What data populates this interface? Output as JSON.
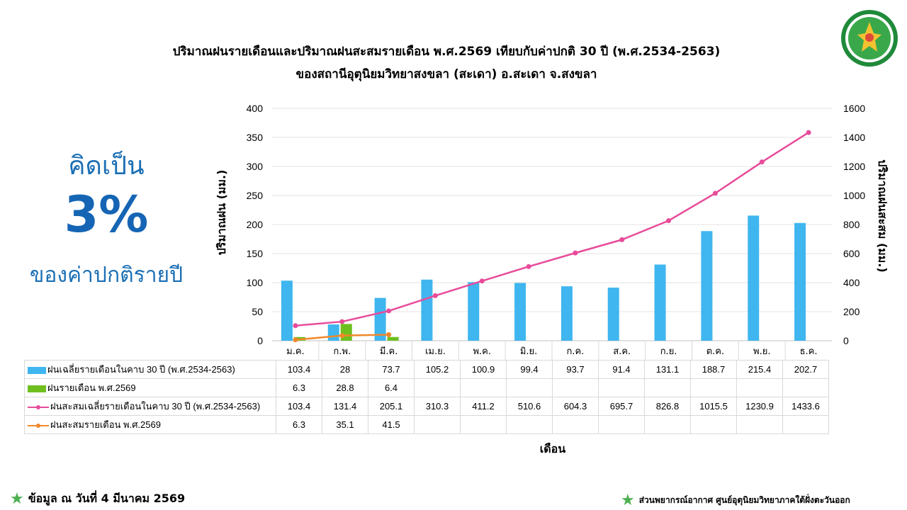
{
  "title_line1": "ปริมาณฝนรายเดือนและปริมาณฝนสะสมรายเดือน  พ.ศ.2569 เทียบกับค่าปกติ 30 ปี (พ.ศ.2534-2563)",
  "title_line2": "ของสถานีอุตุนิยมวิทยาสงขลา  (สะเดา) อ.สะเดา จ.สงขลา",
  "side": {
    "top": "คิดเป็น",
    "percent": "3%",
    "bottom": "ของค่าปกติรายปี"
  },
  "footer": {
    "left": "ข้อมูล ณ วันที่ 4 มีนาคม 2569",
    "right": "ส่วนพยากรณ์อากาศ ศูนย์อุตุนิยมวิทยาภาคใต้ฝั่งตะวันออก"
  },
  "chart_data": {
    "type": "bar",
    "categories": [
      "ม.ค.",
      "ก.พ.",
      "มี.ค.",
      "เม.ย.",
      "พ.ค.",
      "มิ.ย.",
      "ก.ค.",
      "ส.ค.",
      "ก.ย.",
      "ต.ค.",
      "พ.ย.",
      "ธ.ค."
    ],
    "xlabel": "เดือน",
    "ylabel": "ปริมาณฝน (มม.)",
    "ylabel_right": "ปริมาณฝนสะสม (มม.)",
    "ylim": [
      0,
      400
    ],
    "ylim_right": [
      0,
      1600
    ],
    "yticks": [
      0,
      50,
      100,
      150,
      200,
      250,
      300,
      350,
      400
    ],
    "yticks_right": [
      0,
      200,
      400,
      600,
      800,
      1000,
      1200,
      1400,
      1600
    ],
    "grid": true,
    "series": [
      {
        "name": "ฝนเฉลี่ยรายเดือนในคาบ 30 ปี (พ.ศ.2534-2563)",
        "kind": "bar",
        "axis": "left",
        "color": "#3fb6ef",
        "values": [
          103.4,
          28,
          73.7,
          105.2,
          100.9,
          99.4,
          93.7,
          91.4,
          131.1,
          188.7,
          215.4,
          202.7
        ]
      },
      {
        "name": "ฝนรายเดือน พ.ศ.2569",
        "kind": "bar",
        "axis": "left",
        "color": "#6fbf1f",
        "values": [
          6.3,
          28.8,
          6.4,
          null,
          null,
          null,
          null,
          null,
          null,
          null,
          null,
          null
        ]
      },
      {
        "name": "ฝนสะสมเฉลี่ยรายเดือนในคาบ 30 ปี (พ.ศ.2534-2563)",
        "kind": "line",
        "axis": "right",
        "color": "#e84b9a",
        "values": [
          103.4,
          131.4,
          205.1,
          310.3,
          411.2,
          510.6,
          604.3,
          695.7,
          826.8,
          1015.5,
          1230.9,
          1433.6
        ]
      },
      {
        "name": "ฝนสะสมรายเดือน พ.ศ.2569",
        "kind": "line",
        "axis": "right",
        "color": "#f0882a",
        "values": [
          6.3,
          35.1,
          41.5,
          null,
          null,
          null,
          null,
          null,
          null,
          null,
          null,
          null
        ]
      }
    ]
  }
}
